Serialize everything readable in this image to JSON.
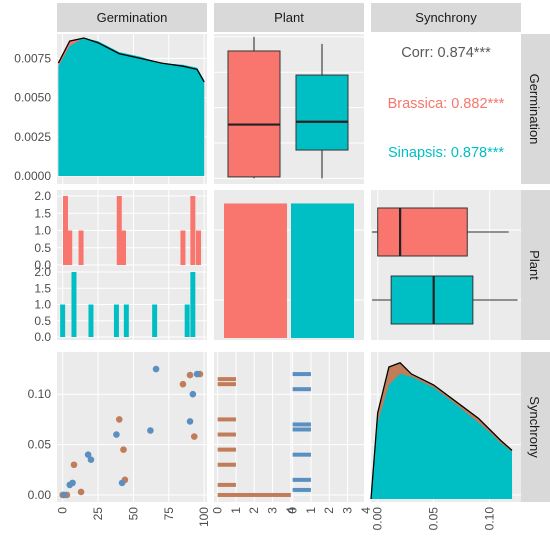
{
  "chart_data": {
    "type": "pairs",
    "variables": [
      "Germination",
      "Plant",
      "Synchrony"
    ],
    "groups": [
      "Brassica",
      "Sinapsis"
    ],
    "colors": {
      "Brassica": "#f8766d",
      "Sinapsis": "#00bfc4",
      "panel_bg": "#ebebeb",
      "strip_bg": "#d9d9d9",
      "grid": "#ffffff",
      "tick_text": "#4d4d4d"
    },
    "correlation": {
      "corr_label": "Corr: 0.874***",
      "brassica_label": "Brassica: 0.882***",
      "sinapsis_label": "Sinapsis: 0.878***",
      "overall": 0.874,
      "brassica": 0.882,
      "sinapsis": 0.878
    },
    "axes": {
      "germination_density_ticks": [
        "0.0000",
        "0.0025",
        "0.0050",
        "0.0075"
      ],
      "germination_density_ylim": [
        0,
        0.0088
      ],
      "count_ticks": [
        "0.0",
        "0.5",
        "1.0",
        "1.5",
        "2.0"
      ],
      "synchrony_ticks": [
        "0.00",
        "0.05",
        "0.10"
      ],
      "synchrony_ylim": [
        -0.004,
        0.13
      ],
      "germination_x_ticks": [
        "0",
        "25",
        "50",
        "75",
        "100"
      ],
      "germination_xlim": [
        -4,
        102
      ],
      "count_x_ticks": [
        "0",
        "1",
        "2",
        "3",
        "4"
      ],
      "synchrony_x_ticks": [
        "0.00",
        "0.05",
        "0.10"
      ],
      "synchrony_xlim": [
        -0.006,
        0.128
      ]
    },
    "germination_density": {
      "x": [
        -3,
        5,
        15,
        25,
        40,
        55,
        70,
        85,
        95,
        100
      ],
      "brassica": [
        0.0072,
        0.0086,
        0.0088,
        0.0085,
        0.0078,
        0.0075,
        0.0072,
        0.007,
        0.0068,
        0.006
      ],
      "sinapsis": [
        0.007,
        0.0083,
        0.0088,
        0.0086,
        0.0079,
        0.0076,
        0.0072,
        0.0071,
        0.0069,
        0.0061
      ]
    },
    "germination_by_plant_boxplot": [
      {
        "group": "Brassica",
        "min": 0,
        "q1": 1,
        "median": 38,
        "q3": 90,
        "max": 100
      },
      {
        "group": "Sinapsis",
        "min": 0,
        "q1": 20,
        "median": 40,
        "q3": 73,
        "max": 95
      }
    ],
    "germination_histogram": {
      "brassica": [
        {
          "x": 2,
          "count": 2
        },
        {
          "x": 5,
          "count": 1
        },
        {
          "x": 13,
          "count": 1
        },
        {
          "x": 40,
          "count": 2
        },
        {
          "x": 43,
          "count": 1
        },
        {
          "x": 85,
          "count": 1
        },
        {
          "x": 92,
          "count": 2
        },
        {
          "x": 96,
          "count": 1
        }
      ],
      "sinapsis": [
        {
          "x": 0,
          "count": 1
        },
        {
          "x": 8,
          "count": 2
        },
        {
          "x": 20,
          "count": 1
        },
        {
          "x": 38,
          "count": 1
        },
        {
          "x": 45,
          "count": 1
        },
        {
          "x": 65,
          "count": 1
        },
        {
          "x": 88,
          "count": 1
        },
        {
          "x": 92,
          "count": 2
        }
      ]
    },
    "plant_counts": [
      {
        "group": "Brassica",
        "count": 10
      },
      {
        "group": "Sinapsis",
        "count": 10
      }
    ],
    "synchrony_by_plant_boxplot": [
      {
        "group": "Brassica",
        "min": -0.005,
        "q1": 0.0,
        "median": 0.02,
        "q3": 0.08,
        "max": 0.117
      },
      {
        "group": "Sinapsis",
        "min": -0.005,
        "q1": 0.012,
        "median": 0.05,
        "q3": 0.085,
        "max": 0.125
      }
    ],
    "synchrony_histogram": {
      "brassica": [
        {
          "y": 0.0,
          "count": 4
        },
        {
          "y": 0.01,
          "count": 1
        },
        {
          "y": 0.03,
          "count": 1
        },
        {
          "y": 0.045,
          "count": 1
        },
        {
          "y": 0.06,
          "count": 1
        },
        {
          "y": 0.075,
          "count": 1
        },
        {
          "y": 0.11,
          "count": 1
        },
        {
          "y": 0.115,
          "count": 1
        }
      ],
      "sinapsis": [
        {
          "y": 0.005,
          "count": 1
        },
        {
          "y": 0.015,
          "count": 1
        },
        {
          "y": 0.04,
          "count": 1
        },
        {
          "y": 0.065,
          "count": 1
        },
        {
          "y": 0.07,
          "count": 1
        },
        {
          "y": 0.105,
          "count": 1
        },
        {
          "y": 0.12,
          "count": 1
        }
      ]
    },
    "scatter": {
      "brassica": [
        {
          "x": 0,
          "y": 0.0
        },
        {
          "x": 3,
          "y": 0.0
        },
        {
          "x": 8,
          "y": 0.03
        },
        {
          "x": 13,
          "y": 0.003
        },
        {
          "x": 40,
          "y": 0.075
        },
        {
          "x": 43,
          "y": 0.045
        },
        {
          "x": 44,
          "y": 0.015
        },
        {
          "x": 85,
          "y": 0.11
        },
        {
          "x": 90,
          "y": 0.119
        },
        {
          "x": 93,
          "y": 0.058
        },
        {
          "x": 97,
          "y": 0.12
        }
      ],
      "sinapsis": [
        {
          "x": 1,
          "y": 0.0
        },
        {
          "x": 5,
          "y": 0.01
        },
        {
          "x": 7,
          "y": 0.012
        },
        {
          "x": 18,
          "y": 0.04
        },
        {
          "x": 20,
          "y": 0.035
        },
        {
          "x": 38,
          "y": 0.06
        },
        {
          "x": 42,
          "y": 0.012
        },
        {
          "x": 62,
          "y": 0.064
        },
        {
          "x": 66,
          "y": 0.125
        },
        {
          "x": 90,
          "y": 0.073
        },
        {
          "x": 92,
          "y": 0.1
        },
        {
          "x": 95,
          "y": 0.12
        }
      ]
    },
    "synchrony_density": {
      "x": [
        -0.006,
        0.0,
        0.01,
        0.02,
        0.03,
        0.05,
        0.07,
        0.09,
        0.1,
        0.11,
        0.12
      ],
      "brassica": [
        0.0,
        0.62,
        0.95,
        0.98,
        0.9,
        0.82,
        0.7,
        0.58,
        0.5,
        0.42,
        0.35
      ],
      "sinapsis": [
        0.0,
        0.55,
        0.82,
        0.9,
        0.88,
        0.8,
        0.68,
        0.55,
        0.48,
        0.4,
        0.34
      ]
    }
  }
}
